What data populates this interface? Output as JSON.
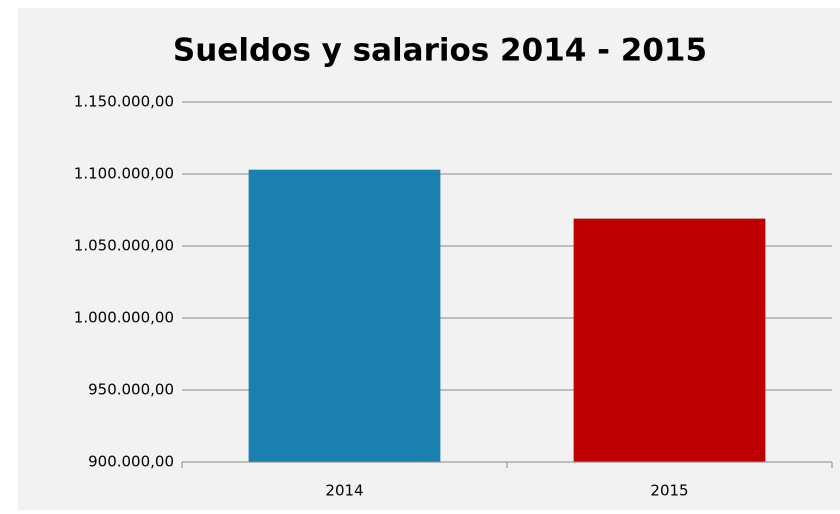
{
  "chart_data": {
    "type": "bar",
    "title": "Sueldos y salarios 2014 - 2015",
    "categories": [
      "2014",
      "2015"
    ],
    "values": [
      1103000,
      1069000
    ],
    "colors": [
      "#1a80b0",
      "#c00000"
    ],
    "ylim": [
      900000,
      1150000
    ],
    "yticks": [
      {
        "value": 900000,
        "label": "900.000,00"
      },
      {
        "value": 950000,
        "label": "950.000,00"
      },
      {
        "value": 1000000,
        "label": "1.000.000,00"
      },
      {
        "value": 1050000,
        "label": "1.050.000,00"
      },
      {
        "value": 1100000,
        "label": "1.100.000,00"
      },
      {
        "value": 1150000,
        "label": "1.150.000,00"
      }
    ],
    "grid": true
  }
}
